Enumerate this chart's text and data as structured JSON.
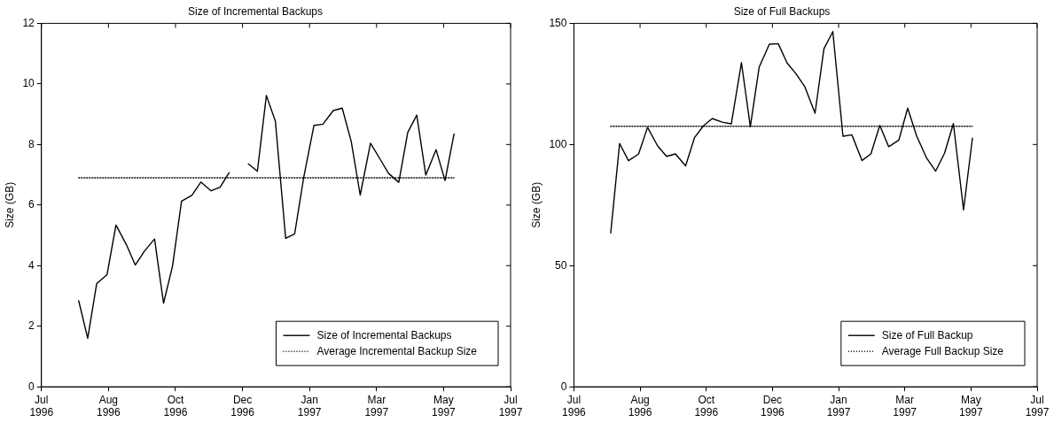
{
  "chart_data": [
    {
      "type": "line",
      "title": "Size of Incremental Backups",
      "ylabel": "Size (GB)",
      "legend": "bottom right",
      "marker": "none",
      "grid": false,
      "x": [
        "1996-07-30",
        "1996-08-06",
        "1996-08-13",
        "1996-08-21",
        "1996-08-28",
        "1996-09-05",
        "1996-09-12",
        "1996-09-19",
        "1996-09-27",
        "1996-10-04",
        "1996-10-11",
        "1996-10-18",
        "1996-10-26",
        "1996-11-02",
        "1996-11-10",
        "1996-11-17",
        "1996-11-24",
        "1996-12-02",
        "1996-12-09",
        "1996-12-16",
        "1996-12-23",
        "1996-12-30",
        "1997-01-07",
        "1997-01-14",
        "1997-01-21",
        "1997-01-29",
        "1997-02-05",
        "1997-02-13",
        "1997-02-20",
        "1997-02-27",
        "1997-03-06",
        "1997-03-14",
        "1997-03-21",
        "1997-03-28",
        "1997-04-05",
        "1997-04-12",
        "1997-04-19",
        "1997-04-26",
        "1997-05-04",
        "1997-05-11",
        "1997-05-18"
      ],
      "series": [
        {
          "name": "Size of Incremental Backups",
          "color": "#000000",
          "line_style": "solid",
          "values": [
            2.84,
            1.6,
            3.41,
            3.7,
            5.34,
            4.7,
            4.02,
            4.47,
            4.88,
            2.76,
            3.99,
            6.13,
            6.32,
            6.76,
            6.47,
            6.59,
            7.07,
            null,
            7.36,
            7.12,
            9.62,
            8.77,
            4.9,
            5.05,
            6.9,
            8.63,
            8.67,
            9.12,
            9.2,
            8.1,
            6.33,
            8.04,
            7.55,
            7.05,
            6.75,
            8.4,
            8.97,
            6.99,
            7.83,
            6.81,
            8.35
          ]
        },
        {
          "name": "Average Incremental Backup Size",
          "color": "#000000",
          "type": "line",
          "line_style": "dotted",
          "x": [
            "1996-07-30",
            "1997-05-18"
          ],
          "values": [
            6.9,
            6.9
          ]
        }
      ],
      "ylim": [
        0,
        12
      ],
      "yticks": [
        0,
        2,
        4,
        6,
        8,
        10,
        12
      ],
      "xlim": [
        "1996-07-01",
        "1997-07-01"
      ],
      "xticks": [
        {
          "value": "1996-07-01",
          "label": "Jul 1996"
        },
        {
          "value": "1996-08-22T03:26",
          "label": "Aug 1996"
        },
        {
          "value": "1996-10-13T06:51",
          "label": "Oct 1996"
        },
        {
          "value": "1996-12-04T10:17",
          "label": "Dec 1996"
        },
        {
          "value": "1997-01-25T13:43",
          "label": "Jan 1997"
        },
        {
          "value": "1997-03-18T17:09",
          "label": "Mar 1997"
        },
        {
          "value": "1997-05-09T20:34",
          "label": "May 1997"
        },
        {
          "value": "1997-07-01",
          "label": "Jul 1997"
        }
      ]
    },
    {
      "type": "line",
      "title": "Size of Full Backups",
      "ylabel": "Size (GB)",
      "legend": "bottom right",
      "marker": "none",
      "grid": false,
      "x": [
        "1996-07-30",
        "1996-08-06",
        "1996-08-13",
        "1996-08-21",
        "1996-08-28",
        "1996-09-05",
        "1996-09-12",
        "1996-09-19",
        "1996-09-27",
        "1996-10-04",
        "1996-10-11",
        "1996-10-18",
        "1996-10-26",
        "1996-11-02",
        "1996-11-10",
        "1996-11-17",
        "1996-11-24",
        "1996-12-02",
        "1996-12-09",
        "1996-12-16",
        "1996-12-23",
        "1996-12-30",
        "1997-01-07",
        "1997-01-14",
        "1997-01-21",
        "1997-01-29",
        "1997-02-05",
        "1997-02-13",
        "1997-02-20",
        "1997-02-27",
        "1997-03-06",
        "1997-03-14",
        "1997-03-21",
        "1997-03-28",
        "1997-04-05",
        "1997-04-12",
        "1997-04-19",
        "1997-04-26",
        "1997-05-04",
        "1997-05-11"
      ],
      "series": [
        {
          "name": "Size of Full Backup",
          "color": "#000000",
          "line_style": "solid",
          "values": [
            63.5,
            100.4,
            93.3,
            96.1,
            107.1,
            99.4,
            95.1,
            96.1,
            91.2,
            102.8,
            107.7,
            110.7,
            109.2,
            108.5,
            133.8,
            107.4,
            132,
            141.4,
            141.6,
            133.6,
            129.2,
            123.8,
            112.9,
            139.5,
            146.6,
            103.4,
            104,
            93.4,
            96.1,
            107.9,
            99.1,
            101.8,
            115,
            103.6,
            94.3,
            89,
            96.4,
            108.6,
            73,
            102.6
          ]
        },
        {
          "name": "Average Full Backup Size",
          "color": "#000000",
          "type": "line",
          "line_style": "dotted",
          "x": [
            "1996-07-30",
            "1997-05-11"
          ],
          "values": [
            107.5,
            107.5
          ]
        }
      ],
      "ylim": [
        0,
        150
      ],
      "yticks": [
        0,
        50,
        100,
        150
      ],
      "xlim": [
        "1996-07-01",
        "1997-07-01"
      ],
      "xticks": [
        {
          "value": "1996-07-01",
          "label": "Jul 1996"
        },
        {
          "value": "1996-08-22T03:26",
          "label": "Aug 1996"
        },
        {
          "value": "1996-10-13T06:51",
          "label": "Oct 1996"
        },
        {
          "value": "1996-12-04T10:17",
          "label": "Dec 1996"
        },
        {
          "value": "1997-01-25T13:43",
          "label": "Jan 1997"
        },
        {
          "value": "1997-03-18T17:09",
          "label": "Mar 1997"
        },
        {
          "value": "1997-05-09T20:34",
          "label": "May 1997"
        },
        {
          "value": "1997-07-01",
          "label": "Jul 1997"
        }
      ]
    }
  ]
}
